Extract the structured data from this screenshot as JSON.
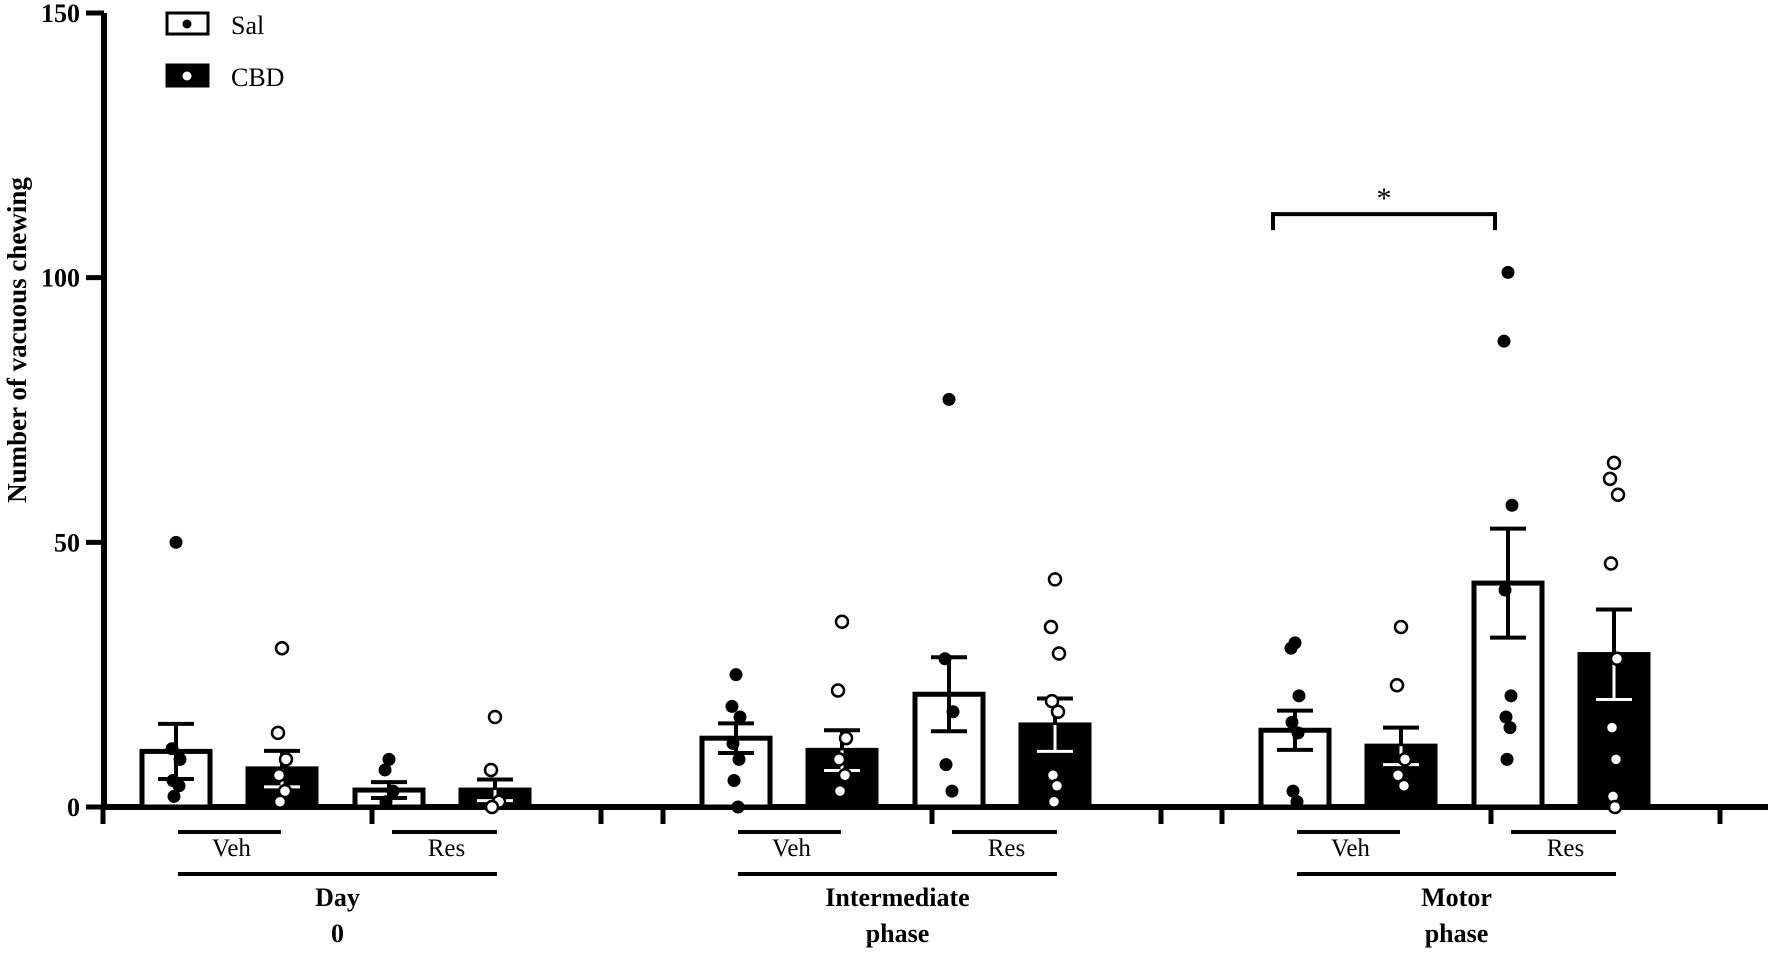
{
  "chart_data": {
    "type": "bar",
    "title": "",
    "xlabel": "",
    "ylabel": "Number of vacuous chewing",
    "ylim": [
      0,
      150
    ],
    "yticks": [
      "0",
      "50",
      "100",
      "150"
    ],
    "grid": false,
    "legend_position": "top-left",
    "colors": {
      "Sal": "#ffffff",
      "CBD": "#000000",
      "outline": "#000000"
    },
    "series": [
      {
        "name": "Sal",
        "marker": "filled-dot"
      },
      {
        "name": "CBD",
        "marker": "open-circle"
      }
    ],
    "phases": [
      {
        "label": "Day 0",
        "treatments": [
          {
            "label": "Veh",
            "bars": [
              {
                "series": "Sal",
                "mean": 10.5,
                "sem": 5.2,
                "points": [
                  50,
                  11,
                  9,
                  5,
                  4,
                  2
                ]
              },
              {
                "series": "CBD",
                "mean": 7.2,
                "sem": 3.4,
                "points": [
                  30,
                  14,
                  9,
                  6,
                  3,
                  1
                ]
              }
            ]
          },
          {
            "label": "Res",
            "bars": [
              {
                "series": "Sal",
                "mean": 3.2,
                "sem": 1.5,
                "points": [
                  9,
                  7,
                  3,
                  1
                ]
              },
              {
                "series": "CBD",
                "mean": 3.2,
                "sem": 2.0,
                "points": [
                  17,
                  7,
                  1,
                  0
                ]
              }
            ]
          }
        ]
      },
      {
        "label": "Intermediate phase",
        "treatments": [
          {
            "label": "Veh",
            "bars": [
              {
                "series": "Sal",
                "mean": 13,
                "sem": 2.8,
                "points": [
                  25,
                  19,
                  17,
                  12,
                  9,
                  5,
                  0
                ]
              },
              {
                "series": "CBD",
                "mean": 10.7,
                "sem": 3.8,
                "points": [
                  35,
                  22,
                  13,
                  9,
                  6,
                  3
                ]
              }
            ]
          },
          {
            "label": "Res",
            "bars": [
              {
                "series": "Sal",
                "mean": 21.3,
                "sem": 7.0,
                "points": [
                  77,
                  28,
                  18,
                  8,
                  3
                ]
              },
              {
                "series": "CBD",
                "mean": 15.5,
                "sem": 5.0,
                "points": [
                  43,
                  34,
                  29,
                  20,
                  18,
                  6,
                  4,
                  1
                ]
              }
            ]
          }
        ]
      },
      {
        "label": "Motor phase",
        "treatments": [
          {
            "label": "Veh",
            "bars": [
              {
                "series": "Sal",
                "mean": 14.5,
                "sem": 3.7,
                "points": [
                  31,
                  30,
                  21,
                  16,
                  14,
                  3,
                  1
                ]
              },
              {
                "series": "CBD",
                "mean": 11.5,
                "sem": 3.5,
                "points": [
                  34,
                  23,
                  9,
                  6,
                  4
                ]
              }
            ]
          },
          {
            "label": "Res",
            "bars": [
              {
                "series": "Sal",
                "mean": 42.3,
                "sem": 10.3,
                "points": [
                  101,
                  88,
                  57,
                  41,
                  21,
                  17,
                  15,
                  9
                ]
              },
              {
                "series": "CBD",
                "mean": 28.8,
                "sem": 8.5,
                "points": [
                  65,
                  62,
                  59,
                  46,
                  28,
                  15,
                  9,
                  2,
                  0
                ]
              }
            ]
          }
        ]
      }
    ],
    "annotations": [
      {
        "text": "*",
        "type": "significance",
        "phase": "Motor phase",
        "from": "Veh Sal",
        "to": "Res Sal",
        "y": 112
      }
    ]
  }
}
